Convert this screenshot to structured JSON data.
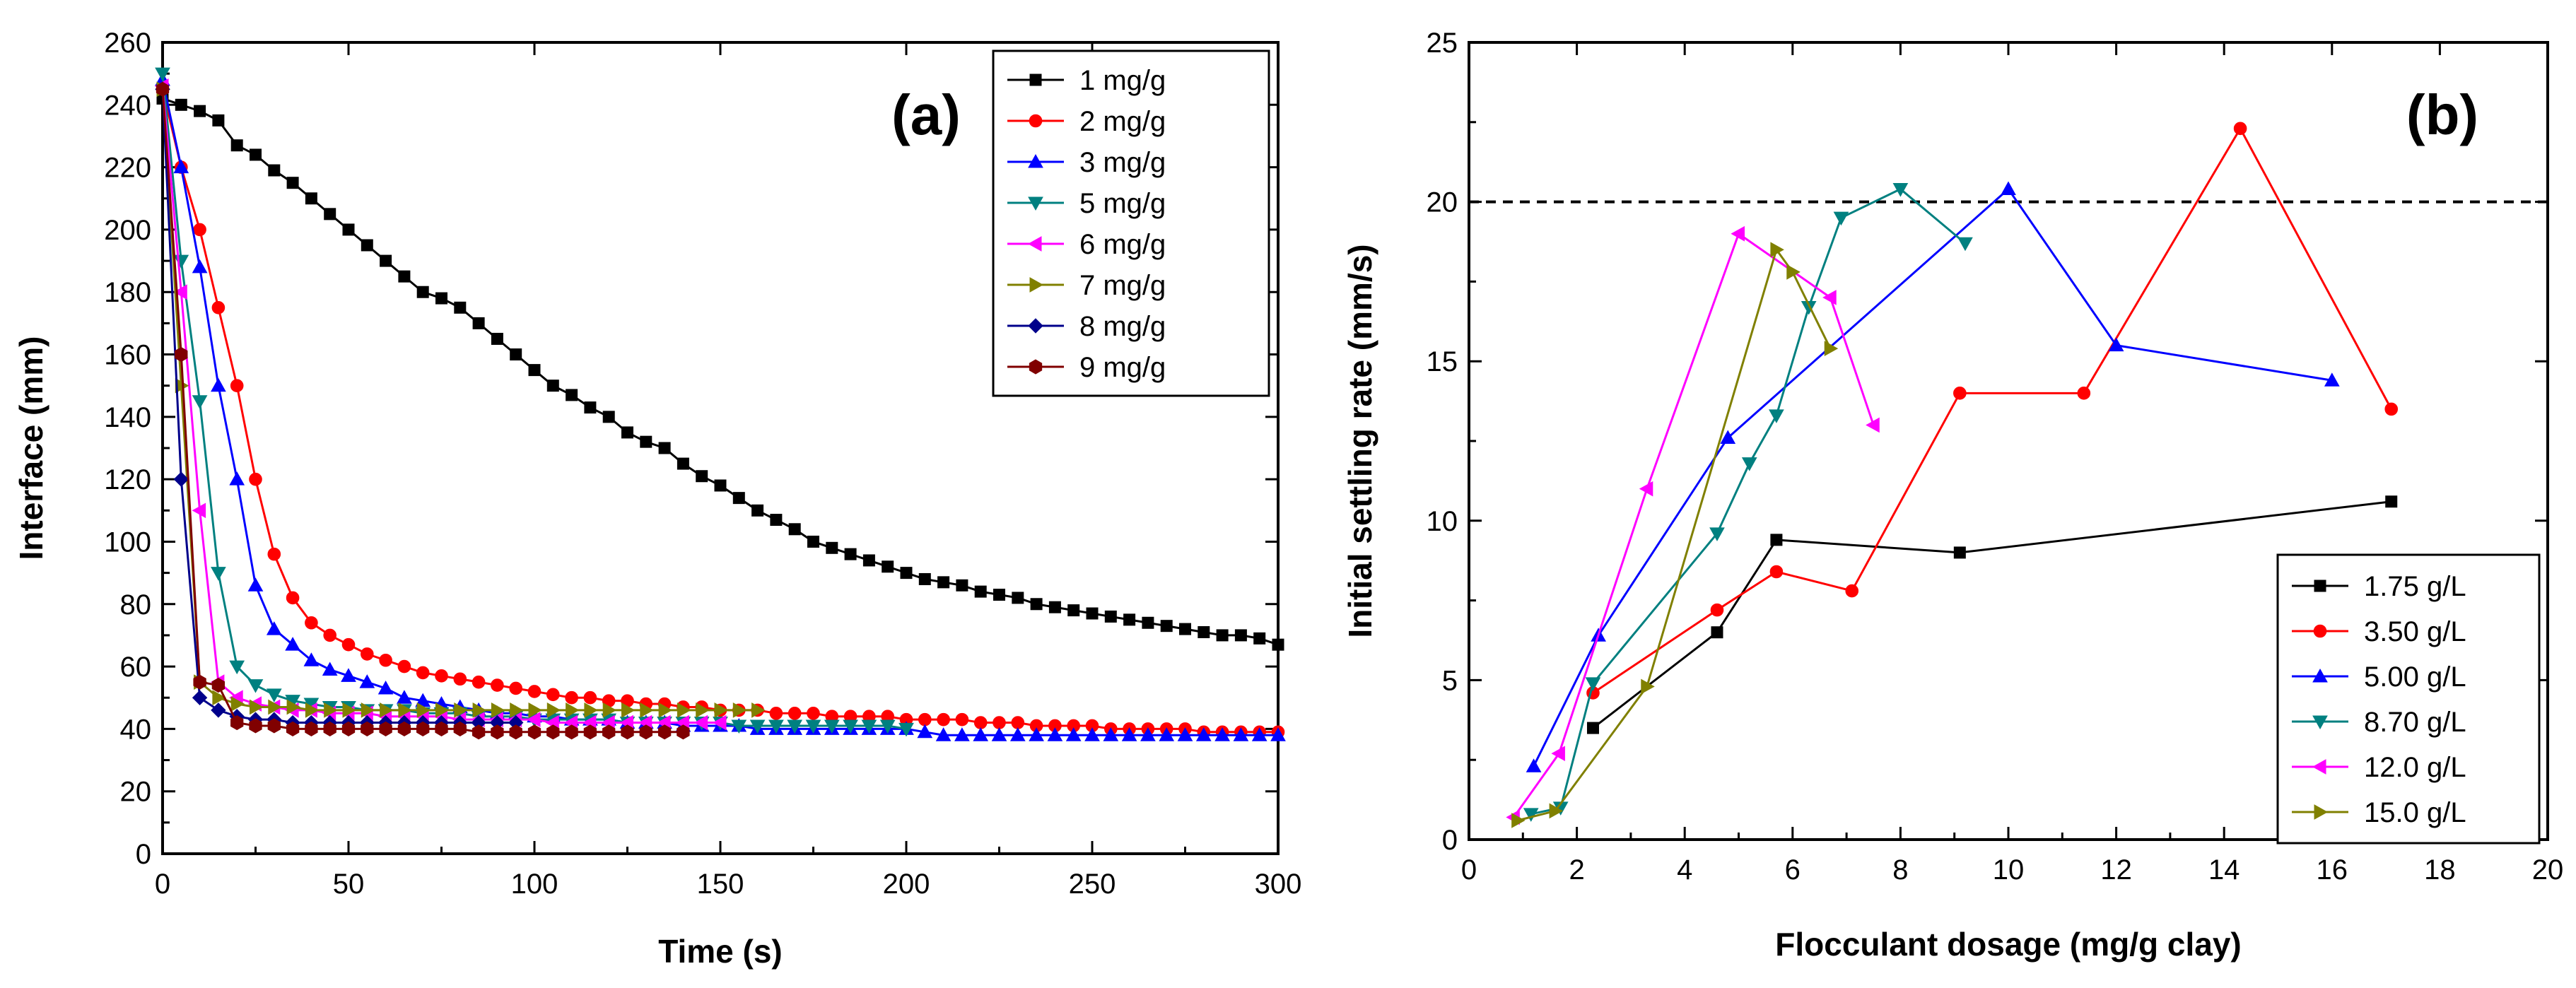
{
  "chart_data": [
    {
      "type": "line",
      "panel_label": "(a)",
      "xlabel": "Time (s)",
      "ylabel": "Interface (mm)",
      "xlim": [
        0,
        300
      ],
      "ylim": [
        0,
        260
      ],
      "xticks": [
        0,
        50,
        100,
        150,
        200,
        250,
        300
      ],
      "yticks": [
        0,
        20,
        40,
        60,
        80,
        100,
        120,
        140,
        160,
        180,
        200,
        220,
        240,
        260
      ],
      "legend_position": "top-right",
      "series": [
        {
          "name": "1 mg/g",
          "color": "#000000",
          "marker": "square",
          "x": [
            0,
            5,
            10,
            15,
            20,
            25,
            30,
            35,
            40,
            45,
            50,
            55,
            60,
            65,
            70,
            75,
            80,
            85,
            90,
            95,
            100,
            105,
            110,
            115,
            120,
            125,
            130,
            135,
            140,
            145,
            150,
            155,
            160,
            165,
            170,
            175,
            180,
            185,
            190,
            195,
            200,
            205,
            210,
            215,
            220,
            225,
            230,
            235,
            240,
            245,
            250,
            255,
            260,
            265,
            270,
            275,
            280,
            285,
            290,
            295,
            300
          ],
          "y": [
            242,
            240,
            238,
            235,
            227,
            224,
            219,
            215,
            210,
            205,
            200,
            195,
            190,
            185,
            180,
            178,
            175,
            170,
            165,
            160,
            155,
            150,
            147,
            143,
            140,
            135,
            132,
            130,
            125,
            121,
            118,
            114,
            110,
            107,
            104,
            100,
            98,
            96,
            94,
            92,
            90,
            88,
            87,
            86,
            84,
            83,
            82,
            80,
            79,
            78,
            77,
            76,
            75,
            74,
            73,
            72,
            71,
            70,
            70,
            69,
            67
          ]
        },
        {
          "name": "2 mg/g",
          "color": "#ff0000",
          "marker": "circle",
          "x": [
            0,
            5,
            10,
            15,
            20,
            25,
            30,
            35,
            40,
            45,
            50,
            55,
            60,
            65,
            70,
            75,
            80,
            85,
            90,
            95,
            100,
            105,
            110,
            115,
            120,
            125,
            130,
            135,
            140,
            145,
            150,
            155,
            160,
            165,
            170,
            175,
            180,
            185,
            190,
            195,
            200,
            205,
            210,
            215,
            220,
            225,
            230,
            235,
            240,
            245,
            250,
            255,
            260,
            265,
            270,
            275,
            280,
            285,
            290,
            295,
            300
          ],
          "y": [
            245,
            220,
            200,
            175,
            150,
            120,
            96,
            82,
            74,
            70,
            67,
            64,
            62,
            60,
            58,
            57,
            56,
            55,
            54,
            53,
            52,
            51,
            50,
            50,
            49,
            49,
            48,
            48,
            47,
            47,
            46,
            46,
            46,
            45,
            45,
            45,
            44,
            44,
            44,
            44,
            43,
            43,
            43,
            43,
            42,
            42,
            42,
            41,
            41,
            41,
            41,
            40,
            40,
            40,
            40,
            40,
            39,
            39,
            39,
            39,
            39
          ]
        },
        {
          "name": "3 mg/g",
          "color": "#0000ff",
          "marker": "triangle-up",
          "x": [
            0,
            5,
            10,
            15,
            20,
            25,
            30,
            35,
            40,
            45,
            50,
            55,
            60,
            65,
            70,
            75,
            80,
            85,
            90,
            95,
            100,
            105,
            110,
            115,
            120,
            125,
            130,
            135,
            140,
            145,
            150,
            155,
            160,
            165,
            170,
            175,
            180,
            185,
            190,
            195,
            200,
            205,
            210,
            215,
            220,
            225,
            230,
            235,
            240,
            245,
            250,
            255,
            260,
            265,
            270,
            275,
            280,
            285,
            290,
            295,
            300
          ],
          "y": [
            248,
            220,
            188,
            150,
            120,
            86,
            72,
            67,
            62,
            59,
            57,
            55,
            53,
            50,
            49,
            48,
            47,
            46,
            45,
            45,
            44,
            44,
            43,
            43,
            43,
            42,
            42,
            42,
            41,
            41,
            41,
            41,
            40,
            40,
            40,
            40,
            40,
            40,
            40,
            40,
            40,
            39,
            38,
            38,
            38,
            38,
            38,
            38,
            38,
            38,
            38,
            38,
            38,
            38,
            38,
            38,
            38,
            38,
            38,
            38,
            38
          ]
        },
        {
          "name": "5 mg/g",
          "color": "#008080",
          "marker": "triangle-down",
          "x": [
            0,
            5,
            10,
            15,
            20,
            25,
            30,
            35,
            40,
            45,
            50,
            55,
            60,
            65,
            70,
            75,
            80,
            85,
            90,
            95,
            100,
            105,
            110,
            115,
            120,
            125,
            130,
            135,
            140,
            145,
            150,
            155,
            160,
            165,
            170,
            175,
            180,
            185,
            190,
            195,
            200
          ],
          "y": [
            250,
            190,
            145,
            90,
            60,
            54,
            51,
            49,
            48,
            47,
            47,
            46,
            46,
            46,
            45,
            45,
            45,
            44,
            44,
            44,
            43,
            43,
            43,
            43,
            43,
            42,
            42,
            42,
            42,
            42,
            42,
            41,
            41,
            41,
            41,
            41,
            41,
            41,
            41,
            41,
            40
          ]
        },
        {
          "name": "6 mg/g",
          "color": "#ff00ff",
          "marker": "triangle-left",
          "x": [
            0,
            5,
            10,
            15,
            20,
            25,
            30,
            35,
            40,
            45,
            50,
            55,
            60,
            65,
            70,
            75,
            80,
            85,
            90,
            95,
            100,
            105,
            110,
            115,
            120,
            125,
            130,
            135,
            140,
            145,
            150
          ],
          "y": [
            246,
            180,
            110,
            55,
            50,
            48,
            47,
            46,
            46,
            45,
            45,
            45,
            44,
            44,
            44,
            44,
            43,
            43,
            43,
            43,
            43,
            42,
            42,
            42,
            42,
            42,
            42,
            42,
            42,
            42,
            42
          ]
        },
        {
          "name": "7 mg/g",
          "color": "#808000",
          "marker": "triangle-right",
          "x": [
            0,
            5,
            10,
            15,
            20,
            25,
            30,
            35,
            40,
            45,
            50,
            55,
            60,
            65,
            70,
            75,
            80,
            85,
            90,
            95,
            100,
            105,
            110,
            115,
            120,
            125,
            130,
            135,
            140,
            145,
            150,
            155,
            160
          ],
          "y": [
            245,
            150,
            55,
            50,
            48,
            47,
            47,
            47,
            46,
            46,
            46,
            46,
            46,
            46,
            46,
            46,
            46,
            46,
            46,
            46,
            46,
            46,
            46,
            46,
            46,
            46,
            46,
            46,
            46,
            46,
            46,
            46,
            46
          ]
        },
        {
          "name": "8 mg/g",
          "color": "#00008b",
          "marker": "diamond",
          "x": [
            0,
            5,
            10,
            15,
            20,
            25,
            30,
            35,
            40,
            45,
            50,
            55,
            60,
            65,
            70,
            75,
            80,
            85,
            90,
            95
          ],
          "y": [
            245,
            120,
            50,
            46,
            44,
            43,
            43,
            42,
            42,
            42,
            42,
            42,
            42,
            42,
            42,
            42,
            42,
            42,
            42,
            42
          ]
        },
        {
          "name": "9 mg/g",
          "color": "#800000",
          "marker": "hexagon",
          "x": [
            0,
            5,
            10,
            15,
            20,
            25,
            30,
            35,
            40,
            45,
            50,
            55,
            60,
            65,
            70,
            75,
            80,
            85,
            90,
            95,
            100,
            105,
            110,
            115,
            120,
            125,
            130,
            135,
            140
          ],
          "y": [
            245,
            160,
            55,
            54,
            42,
            41,
            41,
            40,
            40,
            40,
            40,
            40,
            40,
            40,
            40,
            40,
            40,
            39,
            39,
            39,
            39,
            39,
            39,
            39,
            39,
            39,
            39,
            39,
            39
          ]
        }
      ]
    },
    {
      "type": "line",
      "panel_label": "(b)",
      "xlabel": "Flocculant dosage (mg/g clay)",
      "ylabel": "Initial settling rate (mm/s)",
      "xlim": [
        0,
        20
      ],
      "ylim": [
        0,
        25
      ],
      "xticks": [
        0,
        2,
        4,
        6,
        8,
        10,
        12,
        14,
        16,
        18,
        20
      ],
      "yticks": [
        0,
        5,
        10,
        15,
        20,
        25
      ],
      "reference_line_y": 20,
      "legend_position": "bottom-right",
      "series": [
        {
          "name": "1.75 g/L",
          "color": "#000000",
          "marker": "square",
          "x": [
            2.3,
            4.6,
            5.7,
            9.1,
            17.1
          ],
          "y": [
            3.5,
            6.5,
            9.4,
            9.0,
            10.6
          ]
        },
        {
          "name": "3.50 g/L",
          "color": "#ff0000",
          "marker": "circle",
          "x": [
            2.3,
            4.6,
            5.7,
            7.1,
            9.1,
            11.4,
            14.3,
            17.1
          ],
          "y": [
            4.6,
            7.2,
            8.4,
            7.8,
            14.0,
            14.0,
            22.3,
            13.5
          ]
        },
        {
          "name": "5.00 g/L",
          "color": "#0000ff",
          "marker": "triangle-up",
          "x": [
            1.2,
            2.4,
            4.8,
            10.0,
            12.0,
            16.0
          ],
          "y": [
            2.3,
            6.4,
            12.6,
            20.4,
            15.5,
            14.4
          ]
        },
        {
          "name": "8.70 g/L",
          "color": "#008080",
          "marker": "triangle-down",
          "x": [
            1.15,
            1.7,
            2.3,
            4.6,
            5.2,
            5.7,
            6.3,
            6.9,
            8.0,
            9.2
          ],
          "y": [
            0.8,
            1.0,
            4.9,
            9.6,
            11.8,
            13.3,
            16.7,
            19.5,
            20.4,
            18.7
          ]
        },
        {
          "name": "12.0 g/L",
          "color": "#ff00ff",
          "marker": "triangle-left",
          "x": [
            0.83,
            1.67,
            3.3,
            5.0,
            6.7,
            7.5
          ],
          "y": [
            0.7,
            2.7,
            11.0,
            19.0,
            17.0,
            13.0
          ]
        },
        {
          "name": "15.0 g/L",
          "color": "#808000",
          "marker": "triangle-right",
          "x": [
            0.9,
            1.6,
            3.3,
            5.7,
            6.0,
            6.7
          ],
          "y": [
            0.6,
            0.9,
            4.8,
            18.5,
            17.8,
            15.4
          ]
        }
      ]
    }
  ]
}
